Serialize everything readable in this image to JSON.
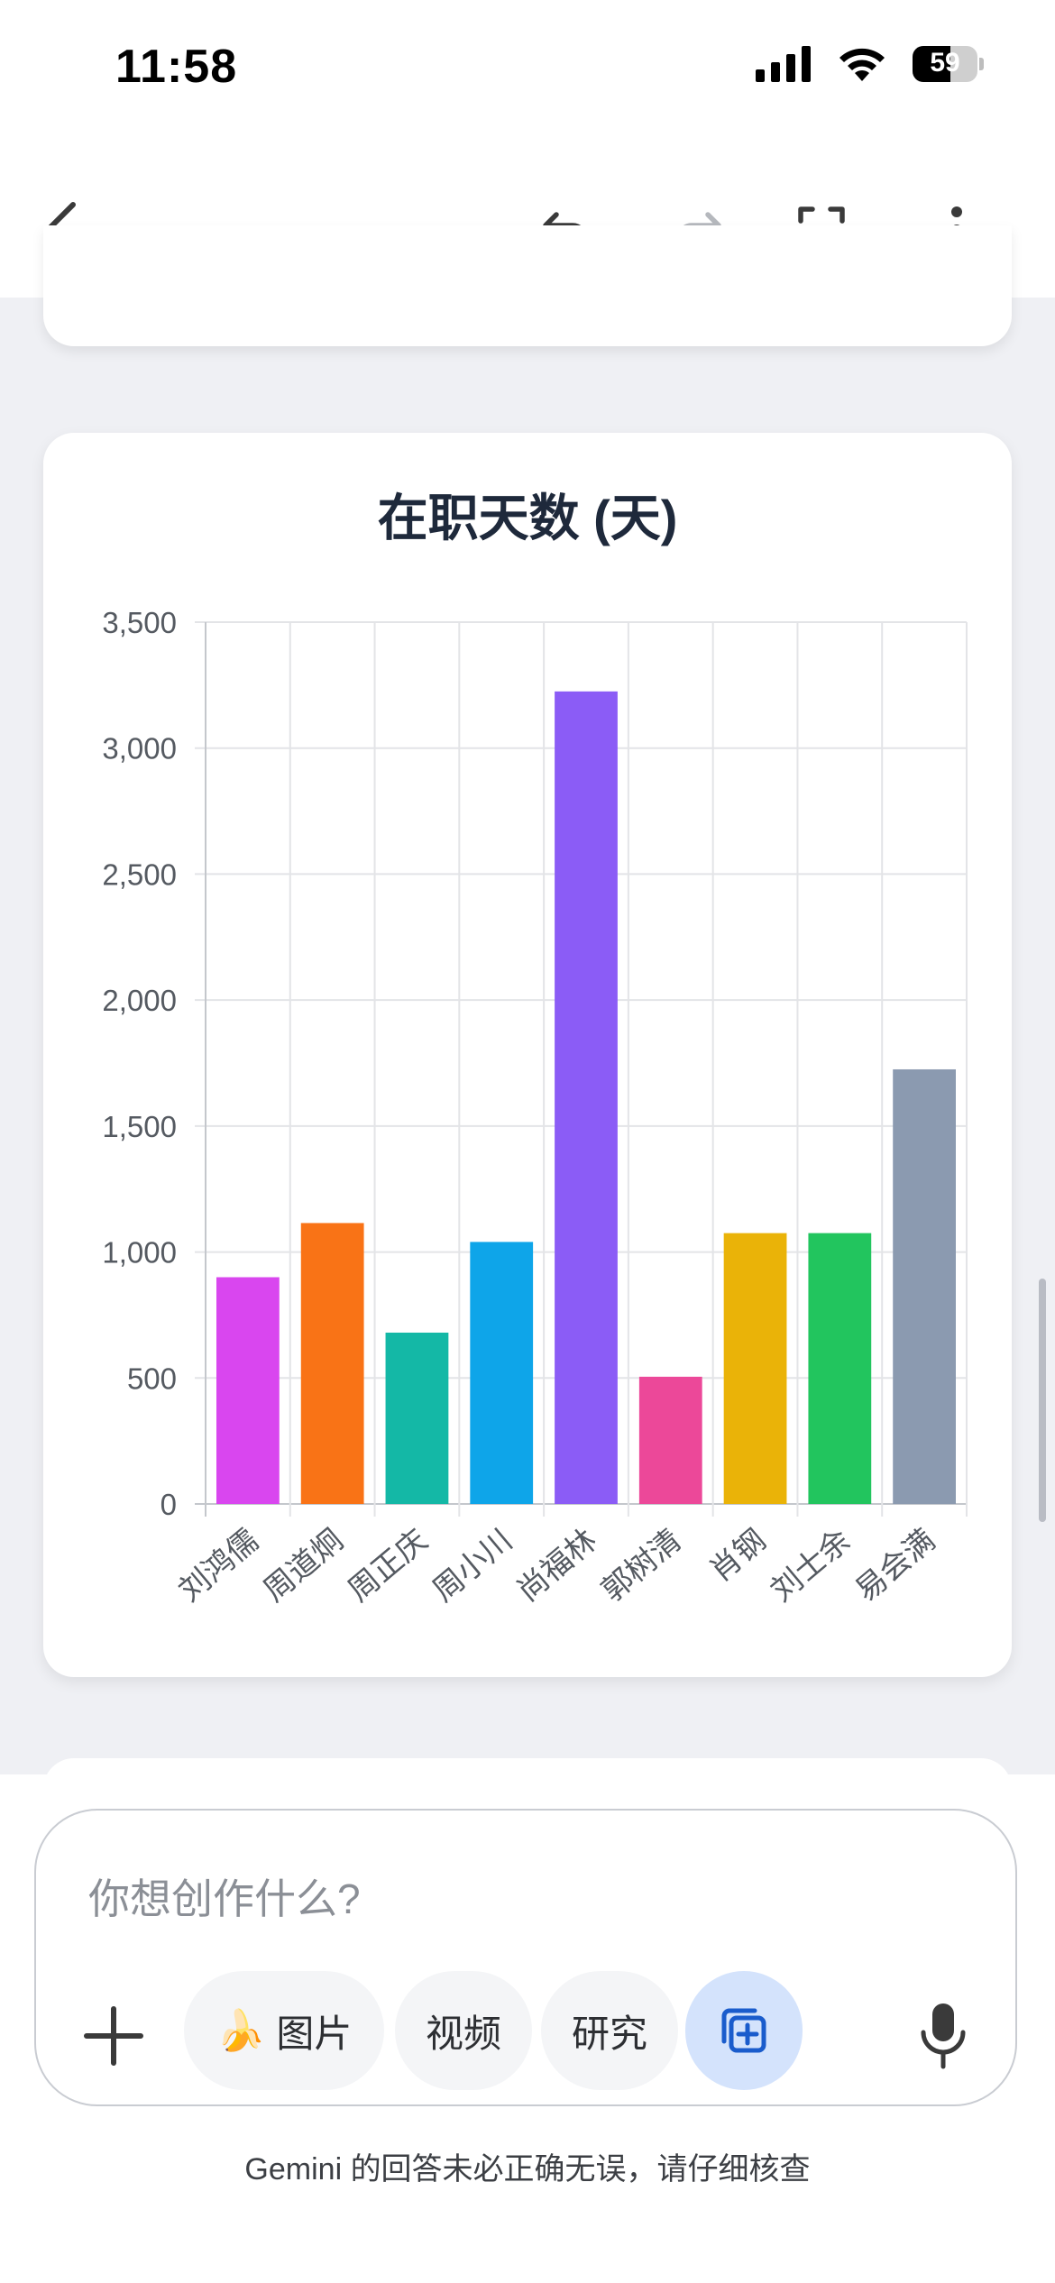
{
  "status_bar": {
    "time": "11:58",
    "battery": "59"
  },
  "chart_data": {
    "type": "bar",
    "title": "在职天数 (天)",
    "categories": [
      "刘鸿儒",
      "周道炯",
      "周正庆",
      "周小川",
      "尚福林",
      "郭树清",
      "肖钢",
      "刘士余",
      "易会满"
    ],
    "values": [
      900,
      1115,
      680,
      1040,
      3225,
      505,
      1075,
      1075,
      1725
    ],
    "colors": [
      "#d946ef",
      "#f97316",
      "#14b8a6",
      "#0ea5e9",
      "#8b5cf6",
      "#ec4899",
      "#eab308",
      "#22c55e",
      "#8b9ab0"
    ],
    "yticks": [
      "0",
      "500",
      "1,000",
      "1,500",
      "2,000",
      "2,500",
      "3,000",
      "3,500"
    ],
    "ylim": [
      0,
      3500
    ],
    "xlabel": "",
    "ylabel": ""
  },
  "input": {
    "placeholder": "你想创作什么?",
    "chips": {
      "image_emoji": "🍌",
      "image": "图片",
      "video": "视频",
      "research": "研究"
    }
  },
  "disclaimer": "Gemini 的回答未必正确无误，请仔细核查"
}
